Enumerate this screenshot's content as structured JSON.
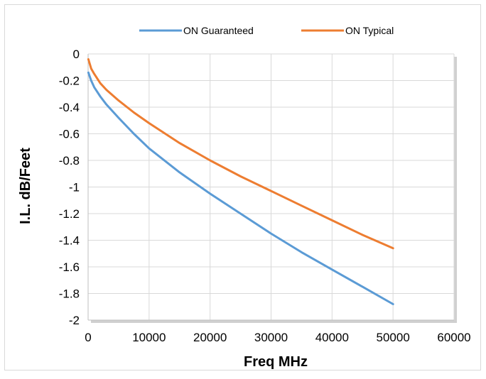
{
  "chart_data": {
    "type": "line",
    "title": "",
    "xlabel": "Freq MHz",
    "ylabel": "I.L. dB/Feet",
    "xlim": [
      0,
      60000
    ],
    "ylim": [
      -2,
      0
    ],
    "x_ticks": [
      "0",
      "10000",
      "20000",
      "30000",
      "40000",
      "50000",
      "60000"
    ],
    "y_ticks": [
      "0",
      "-0.2",
      "-0.4",
      "-0.6",
      "-0.8",
      "-1",
      "-1.2",
      "-1.4",
      "-1.6",
      "-1.8",
      "-2"
    ],
    "grid": true,
    "legend_position": "top",
    "series": [
      {
        "name": "ON Guaranteed",
        "color": "#5b9bd5",
        "x": [
          50,
          500,
          1000,
          2000,
          3000,
          5000,
          7500,
          10000,
          15000,
          20000,
          25000,
          30000,
          35000,
          40000,
          45000,
          50000
        ],
        "y": [
          -0.14,
          -0.2,
          -0.25,
          -0.32,
          -0.38,
          -0.48,
          -0.6,
          -0.71,
          -0.89,
          -1.05,
          -1.2,
          -1.35,
          -1.49,
          -1.62,
          -1.75,
          -1.88
        ]
      },
      {
        "name": "ON Typical",
        "color": "#ed7d31",
        "x": [
          50,
          500,
          1000,
          2000,
          3000,
          5000,
          7500,
          10000,
          15000,
          20000,
          25000,
          30000,
          35000,
          40000,
          45000,
          50000
        ],
        "y": [
          -0.04,
          -0.11,
          -0.15,
          -0.22,
          -0.27,
          -0.35,
          -0.44,
          -0.52,
          -0.67,
          -0.8,
          -0.92,
          -1.03,
          -1.14,
          -1.25,
          -1.36,
          -1.46
        ]
      }
    ]
  }
}
